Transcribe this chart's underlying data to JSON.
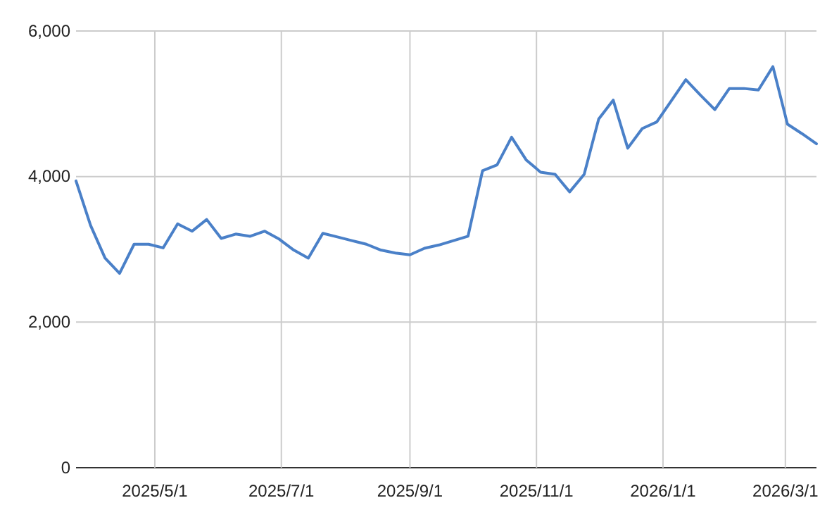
{
  "chart_data": {
    "type": "line",
    "x": [
      "2025-03-24",
      "2025-03-31",
      "2025-04-07",
      "2025-04-14",
      "2025-04-21",
      "2025-04-28",
      "2025-05-05",
      "2025-05-12",
      "2025-05-19",
      "2025-05-26",
      "2025-06-02",
      "2025-06-09",
      "2025-06-16",
      "2025-06-23",
      "2025-06-30",
      "2025-07-07",
      "2025-07-14",
      "2025-07-21",
      "2025-07-28",
      "2025-08-04",
      "2025-08-11",
      "2025-08-18",
      "2025-08-25",
      "2025-09-01",
      "2025-09-08",
      "2025-09-15",
      "2025-09-22",
      "2025-09-29",
      "2025-10-06",
      "2025-10-13",
      "2025-10-20",
      "2025-10-27",
      "2025-11-03",
      "2025-11-10",
      "2025-11-17",
      "2025-11-24",
      "2025-12-01",
      "2025-12-08",
      "2025-12-15",
      "2025-12-22",
      "2025-12-29",
      "2026-01-05",
      "2026-01-12",
      "2026-01-19",
      "2026-01-26",
      "2026-02-02",
      "2026-02-09",
      "2026-02-16",
      "2026-02-23",
      "2026-03-02",
      "2026-03-09",
      "2026-03-16"
    ],
    "series": [
      {
        "color": "#4a80c8",
        "values": [
          3940,
          3330,
          2880,
          2670,
          3070,
          3070,
          3020,
          3350,
          3250,
          3410,
          3150,
          3210,
          3180,
          3250,
          3140,
          2990,
          2880,
          3220,
          3170,
          3120,
          3070,
          2990,
          2950,
          2925,
          3015,
          3060,
          3120,
          3180,
          4080,
          4160,
          4540,
          4230,
          4060,
          4030,
          3790,
          4030,
          4790,
          5050,
          4390,
          4660,
          4750,
          5040,
          5330,
          5120,
          4920,
          5210,
          5210,
          5190,
          5510,
          4720,
          4590,
          4450
        ]
      }
    ],
    "xlim": [
      "2025-03-24",
      "2026-03-16"
    ],
    "xticks": [
      {
        "value": "2025-05-01",
        "label": "2025/5/1"
      },
      {
        "value": "2025-07-01",
        "label": "2025/7/1"
      },
      {
        "value": "2025-09-01",
        "label": "2025/9/1"
      },
      {
        "value": "2025-11-01",
        "label": "2025/11/1"
      },
      {
        "value": "2026-01-01",
        "label": "2026/1/1"
      },
      {
        "value": "2026-03-01",
        "label": "2026/3/1"
      }
    ],
    "ylim": [
      0,
      6000
    ],
    "yticks": [
      {
        "value": 0,
        "label": "0"
      },
      {
        "value": 2000,
        "label": "2,000"
      },
      {
        "value": 4000,
        "label": "4,000"
      },
      {
        "value": 6000,
        "label": "6,000"
      }
    ],
    "grid": true,
    "marker": "none",
    "line_style": "solid"
  }
}
